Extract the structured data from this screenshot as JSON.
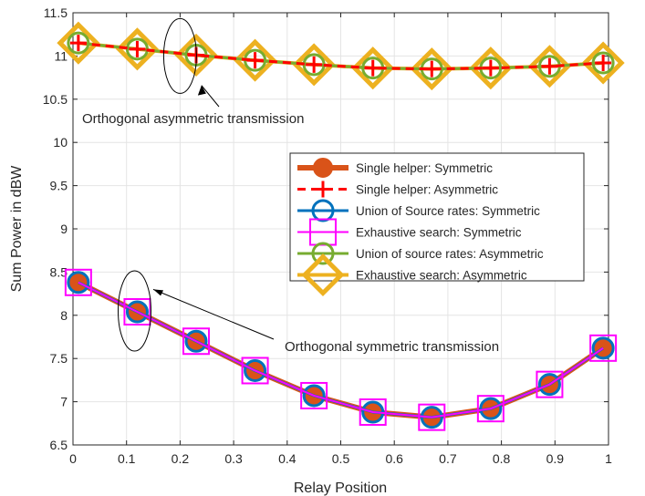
{
  "chart_data": {
    "type": "line",
    "xlabel": "Relay Position",
    "ylabel": "Sum Power in dBW",
    "xlim": [
      0,
      1
    ],
    "ylim": [
      6.5,
      11.5
    ],
    "xticks": [
      "0",
      "0.1",
      "0.2",
      "0.3",
      "0.4",
      "0.5",
      "0.6",
      "0.7",
      "0.8",
      "0.9",
      "1"
    ],
    "yticks": [
      "6.5",
      "7",
      "7.5",
      "8",
      "8.5",
      "9",
      "9.5",
      "10",
      "10.5",
      "11",
      "11.5"
    ],
    "grid": true,
    "legend_position": "center-right",
    "x": [
      0.01,
      0.12,
      0.23,
      0.34,
      0.45,
      0.56,
      0.67,
      0.78,
      0.89,
      0.99
    ],
    "series": [
      {
        "name": "Single helper: Symmetric",
        "group": "symmetric",
        "color": "#D95319",
        "marker": "filled-circle",
        "values": [
          8.38,
          8.04,
          7.7,
          7.36,
          7.07,
          6.88,
          6.82,
          6.92,
          7.2,
          7.62
        ]
      },
      {
        "name": "Single helper: Asymmetric",
        "group": "asymmetric",
        "color": "#FF0000",
        "marker": "plus",
        "values": [
          11.15,
          11.08,
          11.01,
          10.95,
          10.9,
          10.86,
          10.85,
          10.86,
          10.88,
          10.92
        ]
      },
      {
        "name": "Union of Source rates: Symmetric",
        "group": "symmetric",
        "color": "#0072BD",
        "marker": "circle",
        "values": [
          8.38,
          8.04,
          7.7,
          7.36,
          7.07,
          6.88,
          6.82,
          6.92,
          7.2,
          7.62
        ]
      },
      {
        "name": "Exhaustive search: Symmetric",
        "group": "symmetric",
        "color": "#FF00FF",
        "marker": "square",
        "values": [
          8.38,
          8.04,
          7.7,
          7.36,
          7.07,
          6.88,
          6.82,
          6.92,
          7.2,
          7.62
        ]
      },
      {
        "name": "Union of source rates: Asymmetric",
        "group": "asymmetric",
        "color": "#77AC30",
        "marker": "circle",
        "values": [
          11.15,
          11.08,
          11.01,
          10.95,
          10.9,
          10.86,
          10.85,
          10.86,
          10.88,
          10.92
        ]
      },
      {
        "name": "Exhaustive search: Asymmetric",
        "group": "asymmetric",
        "color": "#EDB120",
        "marker": "diamond",
        "values": [
          11.15,
          11.08,
          11.01,
          10.95,
          10.9,
          10.86,
          10.85,
          10.86,
          10.88,
          10.92
        ]
      }
    ],
    "annotations": [
      {
        "text": "Orthogonal asymmetric transmission",
        "arrow_to": [
          0.24,
          10.66
        ],
        "ellipse_at": [
          0.2,
          11.0
        ]
      },
      {
        "text": "Orthogonal symmetric transmission",
        "arrow_to": [
          0.15,
          8.3
        ],
        "ellipse_at": [
          0.115,
          8.05
        ]
      }
    ]
  }
}
